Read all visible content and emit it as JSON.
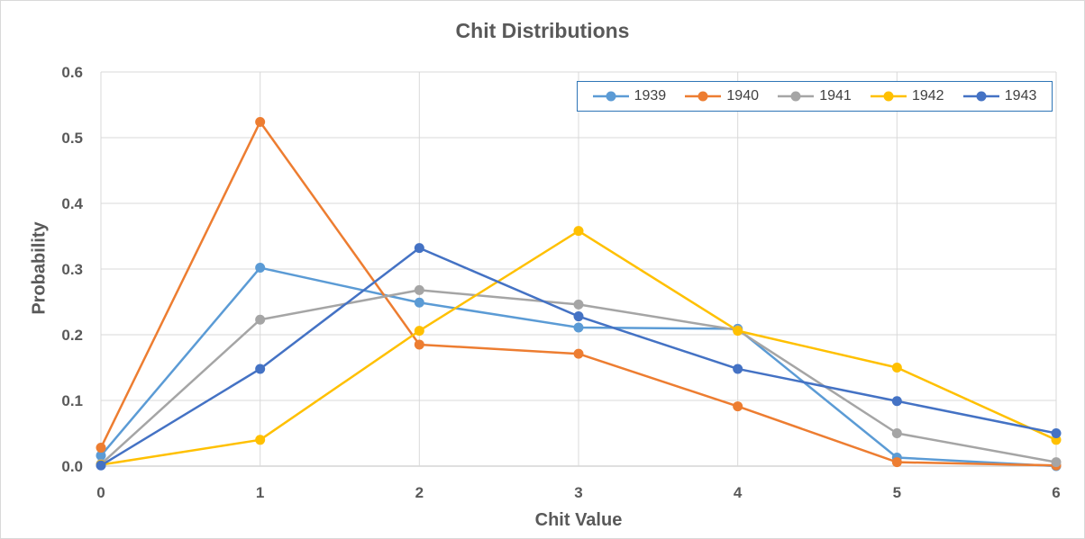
{
  "chart_data": {
    "type": "line",
    "title": "Chit Distributions",
    "xlabel": "Chit Value",
    "ylabel": "Probability",
    "x": [
      0,
      1,
      2,
      3,
      4,
      5,
      6
    ],
    "xlim": [
      0,
      6
    ],
    "ylim": [
      0,
      0.6
    ],
    "y_ticks": [
      "0.0",
      "0.1",
      "0.2",
      "0.3",
      "0.4",
      "0.5",
      "0.6"
    ],
    "x_ticks": [
      "0",
      "1",
      "2",
      "3",
      "4",
      "5",
      "6"
    ],
    "grid": true,
    "legend_position": "top-right",
    "series": [
      {
        "name": "1939",
        "color": "#5b9bd5",
        "values": [
          0.016,
          0.302,
          0.249,
          0.211,
          0.209,
          0.013,
          0.0
        ]
      },
      {
        "name": "1940",
        "color": "#ed7d31",
        "values": [
          0.028,
          0.524,
          0.185,
          0.171,
          0.091,
          0.006,
          0.001
        ]
      },
      {
        "name": "1941",
        "color": "#a5a5a5",
        "values": [
          0.003,
          0.223,
          0.268,
          0.246,
          0.207,
          0.05,
          0.006
        ]
      },
      {
        "name": "1942",
        "color": "#ffc000",
        "values": [
          0.002,
          0.04,
          0.206,
          0.358,
          0.206,
          0.15,
          0.04
        ]
      },
      {
        "name": "1943",
        "color": "#4472c4",
        "values": [
          0.001,
          0.148,
          0.332,
          0.228,
          0.148,
          0.099,
          0.05
        ]
      }
    ]
  }
}
